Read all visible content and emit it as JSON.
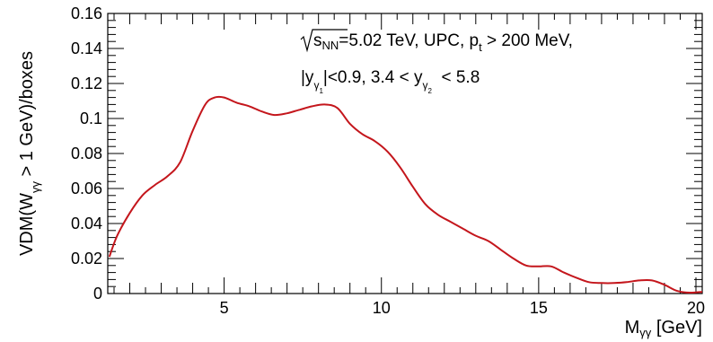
{
  "chart_data": {
    "type": "line",
    "title": "",
    "xlabel": {
      "main": "M",
      "sub": "γγ",
      "unit": " [GeV]"
    },
    "ylabel": {
      "pre": "VDM(W",
      "sub": "γγ",
      "post": " > 1 GeV)/boxes"
    },
    "xlim": [
      1.3,
      20.2
    ],
    "ylim": [
      0,
      0.16
    ],
    "x_ticks": [
      5,
      10,
      15,
      20
    ],
    "x_tick_labels": [
      "5",
      "10",
      "15",
      "20"
    ],
    "y_ticks": [
      0,
      0.02,
      0.04,
      0.06,
      0.08,
      0.1,
      0.12,
      0.14,
      0.16
    ],
    "y_tick_labels": [
      "0",
      "0.02",
      "0.04",
      "0.06",
      "0.08",
      "0.1",
      "0.12",
      "0.14",
      "0.16"
    ],
    "grid": false,
    "annotation": {
      "line1": {
        "sqrt_arg": "s",
        "sqrt_sub": "NN",
        "rest": "=5.02 TeV, UPC, p",
        "pt_sub": "t",
        "rest2": " > 200 MeV,"
      },
      "line2": {
        "part1": "|y",
        "sub1": "γ",
        "subsub1": "1",
        "part2": "|<0.9, 3.4 < y",
        "sub2": "γ",
        "subsub2": "2",
        "part3": "  < 5.8"
      }
    },
    "series": [
      {
        "color": "#c4161c",
        "x": [
          1.35,
          1.6,
          2.0,
          2.4,
          2.8,
          3.2,
          3.6,
          4.0,
          4.4,
          4.7,
          5.0,
          5.4,
          5.8,
          6.2,
          6.6,
          7.0,
          7.4,
          7.8,
          8.2,
          8.6,
          9.0,
          9.4,
          9.8,
          10.2,
          10.6,
          11.0,
          11.4,
          11.8,
          12.2,
          12.6,
          13.0,
          13.4,
          13.8,
          14.2,
          14.6,
          15.0,
          15.4,
          15.8,
          16.2,
          16.6,
          17.0,
          17.4,
          17.8,
          18.2,
          18.6,
          19.0,
          19.4,
          19.8,
          20.2
        ],
        "y": [
          0.021,
          0.033,
          0.046,
          0.056,
          0.062,
          0.067,
          0.075,
          0.093,
          0.108,
          0.112,
          0.112,
          0.109,
          0.107,
          0.104,
          0.102,
          0.103,
          0.105,
          0.107,
          0.108,
          0.106,
          0.097,
          0.091,
          0.087,
          0.081,
          0.072,
          0.061,
          0.051,
          0.045,
          0.041,
          0.037,
          0.033,
          0.03,
          0.025,
          0.02,
          0.016,
          0.0155,
          0.0155,
          0.012,
          0.009,
          0.0065,
          0.006,
          0.006,
          0.0065,
          0.0075,
          0.0075,
          0.005,
          0.0015,
          0.0005,
          0.001
        ]
      }
    ]
  }
}
